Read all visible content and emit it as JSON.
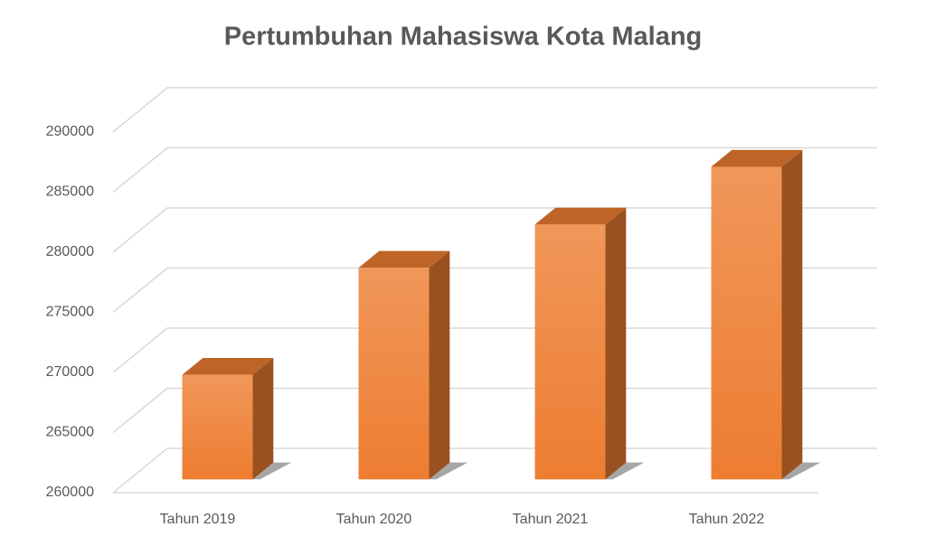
{
  "chart_data": {
    "type": "bar3d",
    "title": "Pertumbuhan Mahasiswa Kota Malang",
    "categories": [
      "Tahun 2019",
      "Tahun 2020",
      "Tahun 2021",
      "Tahun 2022"
    ],
    "values": [
      268700,
      277600,
      281200,
      286000
    ],
    "color": "#ed7d31",
    "ylim": [
      260000,
      290000
    ],
    "yticks": [
      260000,
      265000,
      270000,
      275000,
      280000,
      285000,
      290000
    ],
    "grid": true
  }
}
